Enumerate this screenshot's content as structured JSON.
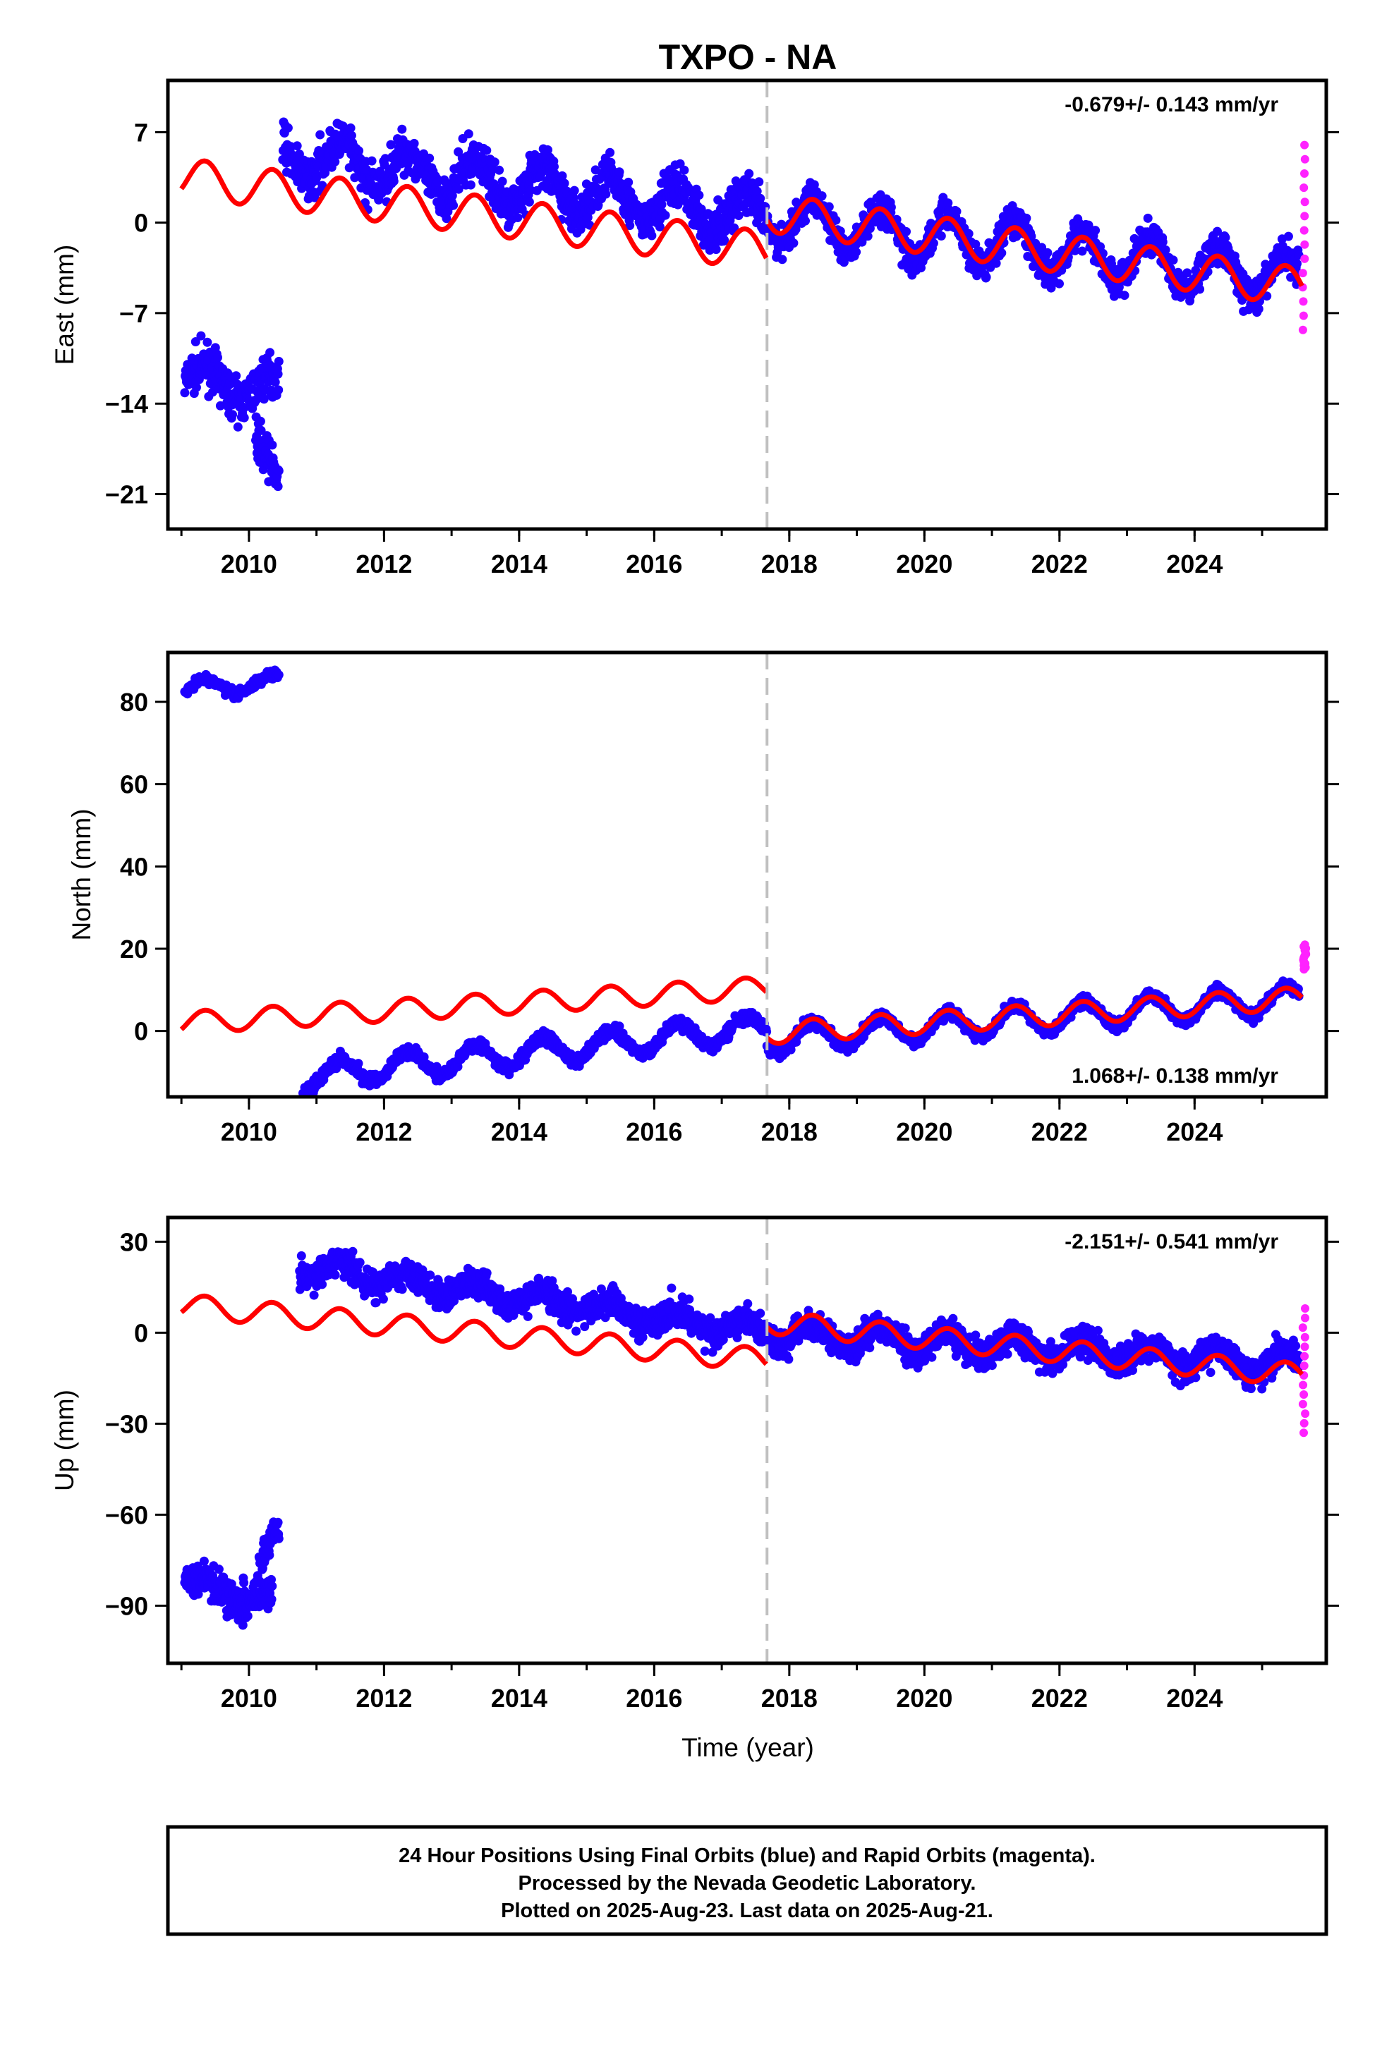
{
  "title": "TXPO - NA",
  "colors": {
    "final": "#1f00ff",
    "rapid": "#ff22ff",
    "model": "#ff0000",
    "break": "#c0c0c0"
  },
  "chart_data": [
    {
      "type": "scatter",
      "ylabel": "East (mm)",
      "xlabel": "",
      "rate": "-0.679+/- 0.143 mm/yr",
      "rate_position": "top-right",
      "xlim": [
        2008.8,
        2025.95
      ],
      "ylim": [
        -23.7,
        11.0
      ],
      "xticks": [
        "2010",
        "2012",
        "2014",
        "2016",
        "2018",
        "2020",
        "2022",
        "2024"
      ],
      "yticks": [
        "7",
        "0",
        "−7",
        "−14",
        "−21"
      ],
      "ytick_values": [
        7,
        0,
        -7,
        -14,
        -21
      ],
      "break_year": 2017.67,
      "series": [
        {
          "points": "final",
          "segments": [
            {
              "x": [
                2009.05,
                2010.45
              ],
              "y0": -12.0,
              "y1": -13.0,
              "amp": 1.2,
              "noise": 1.6
            },
            {
              "x": [
                2010.1,
                2010.45
              ],
              "y0": -16.5,
              "y1": -20.5,
              "amp": 0.5,
              "noise": 1.5
            },
            {
              "x": [
                2010.5,
                2017.67
              ],
              "y0": 5.3,
              "y1": 0.4,
              "amp": 1.6,
              "noise": 1.7
            },
            {
              "x": [
                2017.67,
                2025.55
              ],
              "y0": 0.5,
              "y1": -4.4,
              "amp": 1.8,
              "noise": 1.3
            }
          ]
        },
        {
          "points": "rapid",
          "x": [
            2025.6,
            2025.65
          ],
          "y": [
            -8.3,
            6.0
          ]
        },
        {
          "points": "model",
          "x": [
            2009.0,
            2017.67,
            2017.67,
            2025.6
          ],
          "y": [
            3.5,
            -2.2,
            0.8,
            -5.0
          ],
          "amp": 1.5
        }
      ]
    },
    {
      "type": "scatter",
      "ylabel": "North (mm)",
      "xlabel": "",
      "rate": "1.068+/- 0.138 mm/yr",
      "rate_position": "bottom-right",
      "xlim": [
        2008.8,
        2025.95
      ],
      "ylim": [
        -16.0,
        92.0
      ],
      "xticks": [
        "2010",
        "2012",
        "2014",
        "2016",
        "2018",
        "2020",
        "2022",
        "2024"
      ],
      "yticks": [
        "80",
        "60",
        "40",
        "20",
        "0"
      ],
      "ytick_values": [
        80,
        60,
        40,
        20,
        0
      ],
      "break_year": 2017.67,
      "series": [
        {
          "points": "final",
          "segments": [
            {
              "x": [
                2009.05,
                2010.45
              ],
              "y0": 83.0,
              "y1": 85.0,
              "amp": 2.0,
              "noise": 1.2
            },
            {
              "x": [
                2010.8,
                2017.67
              ],
              "y0": -11.0,
              "y1": 1.0,
              "amp": 3.2,
              "noise": 1.5
            },
            {
              "x": [
                2017.67,
                2025.55
              ],
              "y0": -2.0,
              "y1": 8.0,
              "amp": 3.3,
              "noise": 1.4
            }
          ]
        },
        {
          "points": "rapid",
          "x": [
            2025.6,
            2025.65
          ],
          "y": [
            15.0,
            21.0
          ]
        },
        {
          "points": "model",
          "x": [
            2009.0,
            2017.67,
            2017.67,
            2025.6
          ],
          "y": [
            2.0,
            10.5,
            -0.5,
            8.0
          ],
          "amp": 2.7
        }
      ]
    },
    {
      "type": "scatter",
      "ylabel": "Up (mm)",
      "xlabel": "Time (year)",
      "rate": "-2.151+/- 0.541 mm/yr",
      "rate_position": "top-right",
      "xlim": [
        2008.8,
        2025.95
      ],
      "ylim": [
        -109.0,
        38.0
      ],
      "xticks": [
        "2010",
        "2012",
        "2014",
        "2016",
        "2018",
        "2020",
        "2022",
        "2024"
      ],
      "yticks": [
        "30",
        "0",
        "−30",
        "−60",
        "−90"
      ],
      "ytick_values": [
        30,
        0,
        -30,
        -60,
        -90
      ],
      "break_year": 2017.67,
      "series": [
        {
          "points": "final",
          "segments": [
            {
              "x": [
                2009.05,
                2010.35
              ],
              "y0": -82.0,
              "y1": -88.0,
              "amp": 3.0,
              "noise": 6.0
            },
            {
              "x": [
                2010.15,
                2010.45
              ],
              "y0": -75.0,
              "y1": -65.0,
              "amp": 1.0,
              "noise": 5.0
            },
            {
              "x": [
                2010.75,
                2017.67
              ],
              "y0": 22.0,
              "y1": 0.0,
              "amp": 3.0,
              "noise": 5.0
            },
            {
              "x": [
                2017.67,
                2025.55
              ],
              "y0": 0.5,
              "y1": -10.5,
              "amp": 3.5,
              "noise": 5.0
            }
          ]
        },
        {
          "points": "rapid",
          "x": [
            2025.6,
            2025.65
          ],
          "y": [
            -33.0,
            8.0
          ]
        },
        {
          "points": "model",
          "x": [
            2009.0,
            2017.67,
            2017.67,
            2025.6
          ],
          "y": [
            9.0,
            -9.0,
            3.5,
            -14.0
          ],
          "amp": 3.8
        }
      ]
    }
  ],
  "footer": {
    "line1": "24 Hour Positions Using Final Orbits (blue) and Rapid Orbits (magenta).",
    "line2": "Processed by the Nevada Geodetic Laboratory.",
    "line3": "Plotted on 2025-Aug-23. Last data on 2025-Aug-21."
  }
}
